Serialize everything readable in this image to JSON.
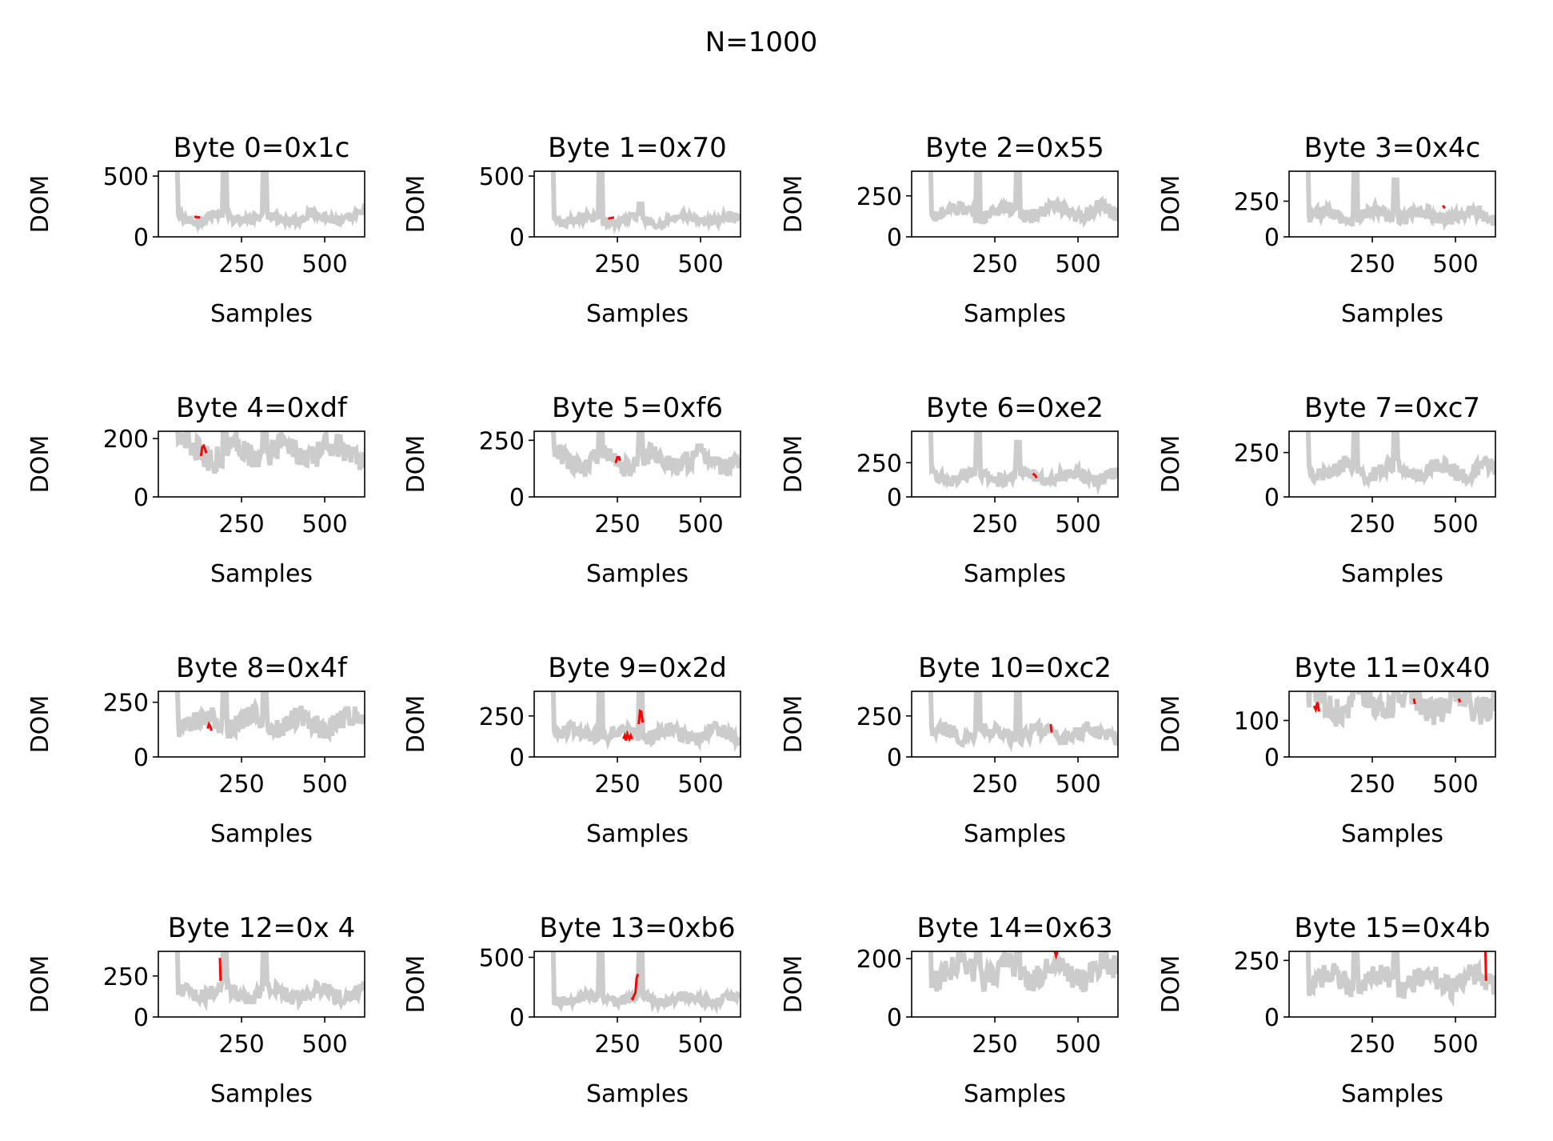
{
  "figure": {
    "suptitle": "N=1000",
    "colors": {
      "background_trace": "#cccccc",
      "highlight_trace": "#ff0000",
      "axes": "#000000"
    }
  },
  "chart_data": [
    {
      "type": "line",
      "title": "Byte 0=0x1c",
      "xlabel": "Samples",
      "ylabel": "DOM",
      "xlim": [
        0,
        620
      ],
      "ylim": [
        0,
        540
      ],
      "xticks": [
        250,
        500
      ],
      "yticks": [
        0,
        500
      ],
      "peaks": [
        [
          10,
          600
        ],
        [
          40,
          600
        ],
        [
          200,
          600
        ],
        [
          320,
          600
        ]
      ],
      "base": 160,
      "ripple": 35,
      "highlight": [
        {
          "x": [
            108,
            125
          ],
          "y": [
            165,
            160
          ]
        }
      ]
    },
    {
      "type": "line",
      "title": "Byte 1=0x70",
      "xlabel": "Samples",
      "ylabel": "DOM",
      "xlim": [
        0,
        620
      ],
      "ylim": [
        0,
        540
      ],
      "xticks": [
        250,
        500
      ],
      "yticks": [
        0,
        500
      ],
      "peaks": [
        [
          10,
          600
        ],
        [
          40,
          600
        ],
        [
          200,
          600
        ],
        [
          320,
          270
        ]
      ],
      "base": 140,
      "ripple": 35,
      "highlight": [
        {
          "x": [
            222,
            240
          ],
          "y": [
            150,
            160
          ]
        }
      ]
    },
    {
      "type": "line",
      "title": "Byte 2=0x55",
      "xlabel": "Samples",
      "ylabel": "DOM",
      "xlim": [
        0,
        620
      ],
      "ylim": [
        0,
        400
      ],
      "xticks": [
        250,
        500
      ],
      "yticks": [
        0,
        250
      ],
      "peaks": [
        [
          10,
          450
        ],
        [
          40,
          450
        ],
        [
          200,
          450
        ],
        [
          320,
          430
        ]
      ],
      "base": 150,
      "ripple": 45,
      "highlight": []
    },
    {
      "type": "line",
      "title": "Byte 3=0x4c",
      "xlabel": "Samples",
      "ylabel": "DOM",
      "xlim": [
        0,
        620
      ],
      "ylim": [
        0,
        460
      ],
      "xticks": [
        250,
        500
      ],
      "yticks": [
        0,
        250
      ],
      "peaks": [
        [
          10,
          500
        ],
        [
          40,
          500
        ],
        [
          200,
          500
        ],
        [
          320,
          400
        ]
      ],
      "base": 150,
      "ripple": 45,
      "highlight": [
        {
          "x": [
            462,
            468
          ],
          "y": [
            220,
            200
          ]
        }
      ]
    },
    {
      "type": "line",
      "title": "Byte 4=0xdf",
      "xlabel": "Samples",
      "ylabel": "DOM",
      "xlim": [
        0,
        620
      ],
      "ylim": [
        0,
        225
      ],
      "xticks": [
        250,
        500
      ],
      "yticks": [
        0,
        200
      ],
      "peaks": [
        [
          10,
          240
        ],
        [
          40,
          240
        ],
        [
          200,
          240
        ],
        [
          320,
          240
        ]
      ],
      "base": 155,
      "ripple": 45,
      "highlight": [
        {
          "x": [
            128,
            132,
            136,
            140,
            144
          ],
          "y": [
            140,
            170,
            175,
            165,
            150
          ]
        }
      ]
    },
    {
      "type": "line",
      "title": "Byte 5=0xf6",
      "xlabel": "Samples",
      "ylabel": "DOM",
      "xlim": [
        0,
        620
      ],
      "ylim": [
        0,
        290
      ],
      "xticks": [
        250,
        500
      ],
      "yticks": [
        0,
        250
      ],
      "peaks": [
        [
          10,
          320
        ],
        [
          40,
          320
        ],
        [
          200,
          320
        ],
        [
          320,
          310
        ]
      ],
      "base": 160,
      "ripple": 45,
      "highlight": [
        {
          "x": [
            245,
            250,
            255,
            258
          ],
          "y": [
            150,
            175,
            175,
            160
          ]
        }
      ]
    },
    {
      "type": "line",
      "title": "Byte 6=0xe2",
      "xlabel": "Samples",
      "ylabel": "DOM",
      "xlim": [
        0,
        620
      ],
      "ylim": [
        0,
        480
      ],
      "xticks": [
        250,
        500
      ],
      "yticks": [
        0,
        250
      ],
      "peaks": [
        [
          10,
          520
        ],
        [
          40,
          520
        ],
        [
          200,
          520
        ],
        [
          320,
          400
        ]
      ],
      "base": 150,
      "ripple": 45,
      "highlight": [
        {
          "x": [
            364,
            370,
            376
          ],
          "y": [
            170,
            160,
            140
          ]
        }
      ]
    },
    {
      "type": "line",
      "title": "Byte 7=0xc7",
      "xlabel": "Samples",
      "ylabel": "DOM",
      "xlim": [
        0,
        620
      ],
      "ylim": [
        0,
        370
      ],
      "xticks": [
        250,
        500
      ],
      "yticks": [
        0,
        250
      ],
      "peaks": [
        [
          10,
          400
        ],
        [
          40,
          400
        ],
        [
          200,
          400
        ],
        [
          320,
          390
        ]
      ],
      "base": 150,
      "ripple": 45,
      "highlight": []
    },
    {
      "type": "line",
      "title": "Byte 8=0x4f",
      "xlabel": "Samples",
      "ylabel": "DOM",
      "xlim": [
        0,
        620
      ],
      "ylim": [
        0,
        300
      ],
      "xticks": [
        250,
        500
      ],
      "yticks": [
        0,
        250
      ],
      "peaks": [
        [
          10,
          330
        ],
        [
          40,
          330
        ],
        [
          200,
          330
        ],
        [
          320,
          320
        ]
      ],
      "base": 160,
      "ripple": 50,
      "highlight": [
        {
          "x": [
            148,
            152,
            156,
            160
          ],
          "y": [
            130,
            150,
            140,
            120
          ]
        }
      ]
    },
    {
      "type": "line",
      "title": "Byte 9=0x2d",
      "xlabel": "Samples",
      "ylabel": "DOM",
      "xlim": [
        0,
        620
      ],
      "ylim": [
        0,
        400
      ],
      "xticks": [
        250,
        500
      ],
      "yticks": [
        0,
        250
      ],
      "peaks": [
        [
          10,
          450
        ],
        [
          40,
          450
        ],
        [
          200,
          450
        ],
        [
          320,
          440
        ]
      ],
      "base": 140,
      "ripple": 45,
      "highlight": [
        {
          "x": [
            268,
            272,
            276,
            280,
            286,
            290,
            294
          ],
          "y": [
            110,
            130,
            100,
            140,
            110,
            130,
            110
          ]
        },
        {
          "x": [
            314,
            318,
            322,
            326
          ],
          "y": [
            200,
            280,
            275,
            210
          ]
        }
      ]
    },
    {
      "type": "line",
      "title": "Byte 10=0xc2",
      "xlabel": "Samples",
      "ylabel": "DOM",
      "xlim": [
        0,
        620
      ],
      "ylim": [
        0,
        400
      ],
      "xticks": [
        250,
        500
      ],
      "yticks": [
        0,
        250
      ],
      "peaks": [
        [
          10,
          450
        ],
        [
          40,
          450
        ],
        [
          200,
          450
        ],
        [
          320,
          440
        ]
      ],
      "base": 140,
      "ripple": 45,
      "highlight": [
        {
          "x": [
            418,
            421
          ],
          "y": [
            200,
            150
          ]
        }
      ]
    },
    {
      "type": "line",
      "title": "Byte 11=0x40",
      "xlabel": "Samples",
      "ylabel": "DOM",
      "xlim": [
        0,
        620
      ],
      "ylim": [
        0,
        180
      ],
      "xticks": [
        250,
        500
      ],
      "yticks": [
        0,
        100
      ],
      "peaks": [
        [
          10,
          200
        ],
        [
          40,
          200
        ],
        [
          200,
          200
        ],
        [
          320,
          200
        ]
      ],
      "base": 150,
      "ripple": 40,
      "highlight": [
        {
          "x": [
            75,
            80,
            85,
            90
          ],
          "y": [
            140,
            130,
            150,
            125
          ]
        },
        {
          "x": [
            375,
            378
          ],
          "y": [
            160,
            145
          ]
        },
        {
          "x": [
            510,
            514
          ],
          "y": [
            160,
            150
          ]
        }
      ]
    },
    {
      "type": "line",
      "title": "Byte 12=0x 4",
      "xlabel": "Samples",
      "ylabel": "DOM",
      "xlim": [
        0,
        620
      ],
      "ylim": [
        0,
        400
      ],
      "xticks": [
        250,
        500
      ],
      "yticks": [
        0,
        250
      ],
      "peaks": [
        [
          10,
          450
        ],
        [
          40,
          450
        ],
        [
          200,
          440
        ],
        [
          320,
          440
        ]
      ],
      "base": 150,
      "ripple": 45,
      "highlight": [
        {
          "x": [
            185,
            187
          ],
          "y": [
            360,
            220
          ]
        }
      ]
    },
    {
      "type": "line",
      "title": "Byte 13=0xb6",
      "xlabel": "Samples",
      "ylabel": "DOM",
      "xlim": [
        0,
        620
      ],
      "ylim": [
        0,
        550
      ],
      "xticks": [
        250,
        500
      ],
      "yticks": [
        0,
        500
      ],
      "peaks": [
        [
          10,
          600
        ],
        [
          40,
          600
        ],
        [
          200,
          600
        ],
        [
          320,
          600
        ]
      ],
      "base": 150,
      "ripple": 40,
      "highlight": [
        {
          "x": [
            292,
            296,
            300,
            304,
            308,
            312
          ],
          "y": [
            160,
            150,
            180,
            200,
            330,
            360
          ]
        }
      ]
    },
    {
      "type": "line",
      "title": "Byte 14=0x63",
      "xlabel": "Samples",
      "ylabel": "DOM",
      "xlim": [
        0,
        620
      ],
      "ylim": [
        0,
        225
      ],
      "xticks": [
        250,
        500
      ],
      "yticks": [
        0,
        200
      ],
      "peaks": [
        [
          10,
          240
        ],
        [
          40,
          240
        ],
        [
          200,
          240
        ],
        [
          320,
          240
        ]
      ],
      "base": 160,
      "ripple": 45,
      "highlight": [
        {
          "x": [
            430,
            434,
            438
          ],
          "y": [
            225,
            210,
            225
          ]
        }
      ]
    },
    {
      "type": "line",
      "title": "Byte 15=0x4b",
      "xlabel": "Samples",
      "ylabel": "DOM",
      "xlim": [
        0,
        620
      ],
      "ylim": [
        0,
        290
      ],
      "xticks": [
        250,
        500
      ],
      "yticks": [
        0,
        250
      ],
      "peaks": [
        [
          10,
          320
        ],
        [
          40,
          320
        ],
        [
          200,
          320
        ],
        [
          320,
          310
        ]
      ],
      "base": 160,
      "ripple": 50,
      "highlight": [
        {
          "x": [
            590,
            592
          ],
          "y": [
            290,
            160
          ]
        }
      ]
    }
  ]
}
